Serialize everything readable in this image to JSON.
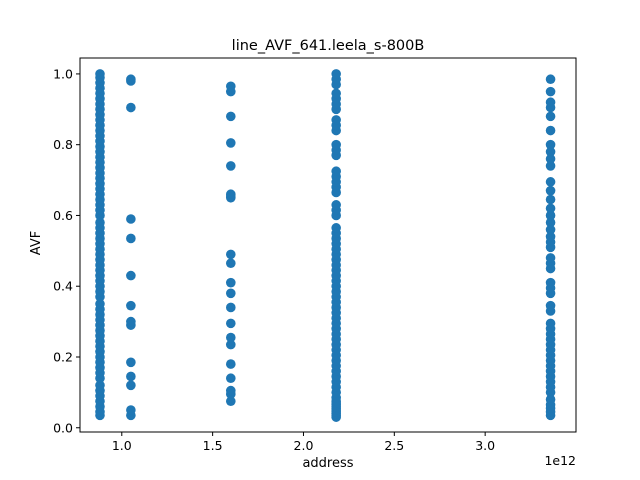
{
  "chart_data": {
    "type": "scatter",
    "title": "line_AVF_641.leela_s-800B",
    "xlabel": "address",
    "ylabel": "AVF",
    "x_offset_label": "1e12",
    "xlim": [
      0.77,
      3.5
    ],
    "ylim": [
      -0.012,
      1.045
    ],
    "x_ticks": [
      1.0,
      1.5,
      2.0,
      2.5,
      3.0
    ],
    "x_tick_labels": [
      "1.0",
      "1.5",
      "2.0",
      "2.5",
      "3.0"
    ],
    "y_ticks": [
      0.0,
      0.2,
      0.4,
      0.6,
      0.8,
      1.0
    ],
    "y_tick_labels": [
      "0.0",
      "0.2",
      "0.4",
      "0.6",
      "0.8",
      "1.0"
    ],
    "grid": false,
    "marker_color": "#1f77b4",
    "series": [
      {
        "x": 0.88,
        "y": [
          0.035,
          0.045,
          0.06,
          0.075,
          0.09,
          0.105,
          0.12,
          0.14,
          0.155,
          0.17,
          0.185,
          0.2,
          0.215,
          0.23,
          0.245,
          0.26,
          0.275,
          0.29,
          0.305,
          0.32,
          0.335,
          0.35,
          0.37,
          0.385,
          0.4,
          0.415,
          0.43,
          0.445,
          0.46,
          0.475,
          0.49,
          0.505,
          0.52,
          0.535,
          0.55,
          0.565,
          0.58,
          0.6,
          0.615,
          0.63,
          0.645,
          0.66,
          0.675,
          0.69,
          0.705,
          0.72,
          0.735,
          0.75,
          0.765,
          0.78,
          0.795,
          0.81,
          0.825,
          0.84,
          0.855,
          0.87,
          0.885,
          0.9,
          0.915,
          0.93,
          0.945,
          0.96,
          0.975,
          0.99,
          1.0
        ]
      },
      {
        "x": 1.05,
        "y": [
          0.035,
          0.05,
          0.12,
          0.145,
          0.185,
          0.29,
          0.3,
          0.345,
          0.43,
          0.535,
          0.59,
          0.905,
          0.98,
          0.985
        ]
      },
      {
        "x": 1.6,
        "y": [
          0.075,
          0.095,
          0.105,
          0.14,
          0.18,
          0.235,
          0.255,
          0.295,
          0.34,
          0.38,
          0.41,
          0.465,
          0.49,
          0.65,
          0.655,
          0.66,
          0.74,
          0.805,
          0.88,
          0.95,
          0.965
        ]
      },
      {
        "x": 2.18,
        "y": [
          0.03,
          0.035,
          0.04,
          0.045,
          0.05,
          0.055,
          0.06,
          0.065,
          0.07,
          0.075,
          0.085,
          0.1,
          0.115,
          0.13,
          0.145,
          0.16,
          0.175,
          0.19,
          0.205,
          0.22,
          0.235,
          0.25,
          0.265,
          0.28,
          0.295,
          0.31,
          0.325,
          0.34,
          0.355,
          0.37,
          0.385,
          0.4,
          0.415,
          0.43,
          0.445,
          0.46,
          0.475,
          0.49,
          0.505,
          0.52,
          0.535,
          0.55,
          0.565,
          0.6,
          0.615,
          0.63,
          0.665,
          0.68,
          0.695,
          0.71,
          0.725,
          0.77,
          0.785,
          0.8,
          0.84,
          0.855,
          0.87,
          0.9,
          0.915,
          0.93,
          0.945,
          0.97,
          0.985,
          1.0
        ]
      },
      {
        "x": 3.36,
        "y": [
          0.035,
          0.045,
          0.055,
          0.065,
          0.08,
          0.1,
          0.115,
          0.13,
          0.145,
          0.16,
          0.175,
          0.19,
          0.205,
          0.22,
          0.235,
          0.25,
          0.265,
          0.28,
          0.295,
          0.33,
          0.345,
          0.38,
          0.395,
          0.41,
          0.45,
          0.465,
          0.48,
          0.51,
          0.525,
          0.54,
          0.56,
          0.58,
          0.6,
          0.62,
          0.645,
          0.67,
          0.695,
          0.74,
          0.76,
          0.78,
          0.8,
          0.84,
          0.88,
          0.905,
          0.92,
          0.95,
          0.985
        ]
      }
    ]
  }
}
